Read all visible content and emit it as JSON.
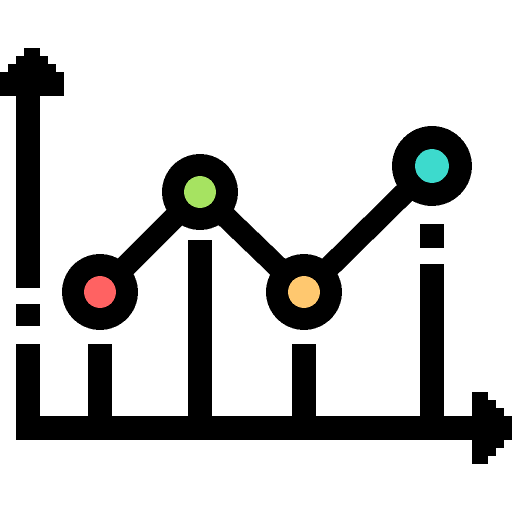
{
  "icon": {
    "name": "line-chart-icon",
    "style": "pixel-art",
    "stroke_color": "#000000",
    "background": "#ffffff",
    "points": [
      {
        "name": "data-point-red",
        "color": "#ff6262"
      },
      {
        "name": "data-point-green",
        "color": "#a6e361"
      },
      {
        "name": "data-point-orange",
        "color": "#ffc86f"
      },
      {
        "name": "data-point-teal",
        "color": "#3ddacd"
      }
    ]
  }
}
